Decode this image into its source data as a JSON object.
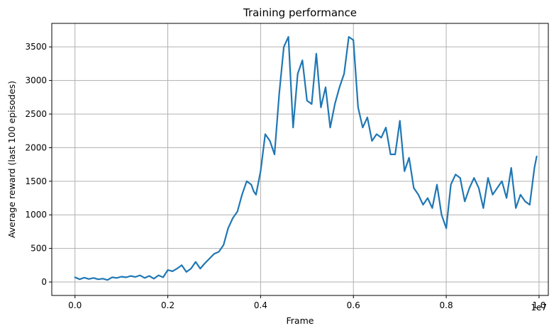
{
  "chart_data": {
    "type": "line",
    "title": "Training performance",
    "xlabel": "Frame",
    "ylabel": "Average reward (last 100 episodes)",
    "x_offset_label": "1e7",
    "xlim": [
      -0.05,
      1.02
    ],
    "ylim": [
      -200,
      3850
    ],
    "xticks": [
      0.0,
      0.2,
      0.4,
      0.6,
      0.8,
      1.0
    ],
    "xtick_labels": [
      "0.0",
      "0.2",
      "0.4",
      "0.6",
      "0.8",
      "1.0"
    ],
    "yticks": [
      0,
      500,
      1000,
      1500,
      2000,
      2500,
      3000,
      3500
    ],
    "ytick_labels": [
      "0",
      "500",
      "1000",
      "1500",
      "2000",
      "2500",
      "3000",
      "3500"
    ],
    "grid": true,
    "color": "#1f77b4",
    "series": [
      {
        "x": [
          0.0,
          0.01,
          0.02,
          0.03,
          0.04,
          0.05,
          0.06,
          0.07,
          0.08,
          0.09,
          0.1,
          0.11,
          0.12,
          0.13,
          0.14,
          0.15,
          0.16,
          0.17,
          0.18,
          0.19,
          0.2,
          0.21,
          0.22,
          0.23,
          0.24,
          0.25,
          0.26,
          0.27,
          0.28,
          0.29,
          0.3,
          0.31,
          0.32,
          0.33,
          0.34,
          0.35,
          0.36,
          0.37,
          0.38,
          0.385,
          0.39,
          0.4,
          0.41,
          0.42,
          0.43,
          0.44,
          0.45,
          0.46,
          0.47,
          0.48,
          0.49,
          0.5,
          0.51,
          0.52,
          0.53,
          0.54,
          0.55,
          0.56,
          0.57,
          0.58,
          0.59,
          0.6,
          0.61,
          0.62,
          0.63,
          0.64,
          0.65,
          0.66,
          0.67,
          0.68,
          0.69,
          0.7,
          0.71,
          0.72,
          0.73,
          0.74,
          0.75,
          0.76,
          0.77,
          0.78,
          0.79,
          0.8,
          0.81,
          0.82,
          0.83,
          0.84,
          0.85,
          0.86,
          0.87,
          0.88,
          0.89,
          0.9,
          0.91,
          0.92,
          0.93,
          0.94,
          0.95,
          0.96,
          0.97,
          0.98,
          0.99,
          0.995
        ],
        "y": [
          70,
          40,
          65,
          45,
          60,
          40,
          50,
          30,
          70,
          60,
          80,
          70,
          90,
          75,
          100,
          60,
          90,
          50,
          100,
          70,
          180,
          160,
          200,
          250,
          150,
          200,
          300,
          200,
          280,
          350,
          420,
          450,
          550,
          800,
          950,
          1050,
          1300,
          1500,
          1450,
          1350,
          1300,
          1650,
          2200,
          2100,
          1900,
          2800,
          3500,
          3650,
          2300,
          3100,
          3300,
          2700,
          2650,
          3400,
          2600,
          2900,
          2300,
          2650,
          2900,
          3100,
          3650,
          3600,
          2600,
          2300,
          2450,
          2100,
          2200,
          2150,
          2300,
          1900,
          1900,
          2400,
          1650,
          1850,
          1400,
          1300,
          1150,
          1250,
          1100,
          1450,
          1000,
          800,
          1450,
          1600,
          1550,
          1200,
          1400,
          1550,
          1400,
          1100,
          1550,
          1300,
          1400,
          1500,
          1250,
          1700,
          1100,
          1300,
          1200,
          1150,
          1700,
          1870
        ]
      }
    ]
  }
}
